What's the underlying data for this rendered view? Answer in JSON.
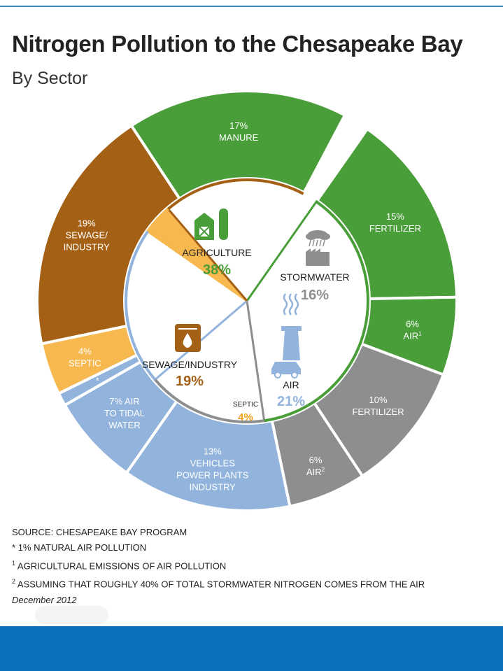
{
  "header": {
    "title": "Nitrogen Pollution to the Chesapeake Bay",
    "subtitle": "By Sector"
  },
  "chart_data": {
    "type": "pie",
    "title": "Nitrogen Pollution to the Chesapeake Bay",
    "subtitle": "By Sector",
    "style": "nested donut (inner ring = sector, outer ring = source)",
    "colors": {
      "agriculture": "#4a9e3a",
      "stormwater": "#8d8e8f",
      "air": "#92b4dc",
      "septic": "#f6b84f",
      "sewage": "#a46116",
      "septic_label": "#f2a21e"
    },
    "inner": [
      {
        "key": "agriculture",
        "name": "AGRICULTURE",
        "value": 38,
        "label": "38%"
      },
      {
        "key": "stormwater",
        "name": "STORMWATER",
        "value": 16,
        "label": "16%"
      },
      {
        "key": "air",
        "name": "AIR",
        "value": 21,
        "label": "21%"
      },
      {
        "key": "septic",
        "name": "SEPTIC",
        "value": 4,
        "label": "4%"
      },
      {
        "key": "sewage",
        "name": "SEWAGE/INDUSTRY",
        "value": 19,
        "label": "19%"
      }
    ],
    "outer": [
      {
        "sector": "agriculture",
        "value": 15,
        "lines": [
          "15%",
          "FERTILIZER"
        ]
      },
      {
        "sector": "agriculture",
        "value": 6,
        "lines": [
          "6%",
          "AIR"
        ],
        "sup": "1"
      },
      {
        "sector": "stormwater",
        "value": 10,
        "lines": [
          "10%",
          "FERTILIZER"
        ]
      },
      {
        "sector": "stormwater",
        "value": 6,
        "lines": [
          "6%",
          "AIR"
        ],
        "sup": "2"
      },
      {
        "sector": "air",
        "value": 13,
        "lines": [
          "13%",
          "VEHICLES",
          "POWER PLANTS",
          "INDUSTRY"
        ]
      },
      {
        "sector": "air",
        "value": 7,
        "lines": [
          "7% AIR",
          "TO TIDAL",
          "WATER"
        ]
      },
      {
        "sector": "air",
        "value": 1,
        "lines": [
          "*"
        ]
      },
      {
        "sector": "septic",
        "value": 4,
        "lines": [
          "4%",
          "SEPTIC"
        ]
      },
      {
        "sector": "sewage",
        "value": 19,
        "lines": [
          "19%",
          "SEWAGE/",
          "INDUSTRY"
        ]
      },
      {
        "sector": "agriculture",
        "value": 17,
        "lines": [
          "17%",
          "MANURE"
        ]
      }
    ]
  },
  "notes": {
    "source": "SOURCE: CHESAPEAKE BAY PROGRAM",
    "star_prefix": "*",
    "star": "1% NATURAL AIR POLLUTION",
    "fn1_mark": "1",
    "fn1": "AGRICULTURAL EMISSIONS OF AIR POLLUTION",
    "fn2_mark": "2",
    "fn2": "ASSUMING THAT ROUGHLY 40% OF TOTAL STORMWATER NITROGEN COMES FROM THE AIR",
    "date": "December 2012"
  },
  "icons": [
    "barn-silo-icon",
    "factory-cloud-icon",
    "smokestack-car-icon",
    "toilet-icon",
    "sewer-drop-icon"
  ]
}
